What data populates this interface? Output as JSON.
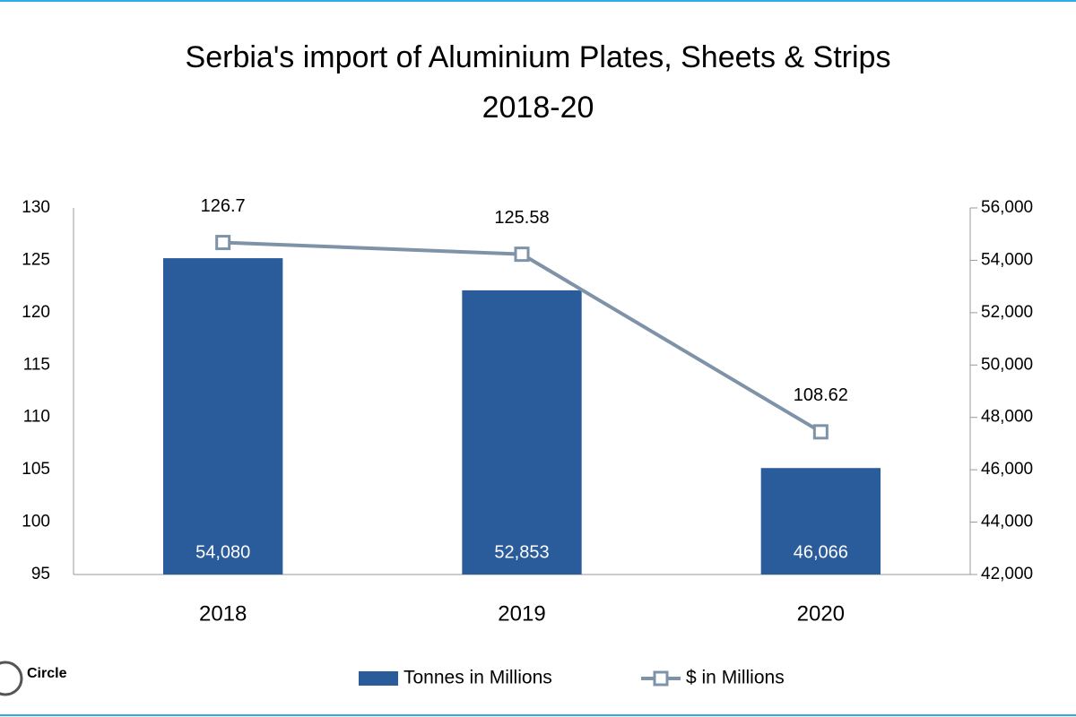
{
  "chart_data": {
    "type": "combo",
    "title": [
      "Serbia's import of Aluminium Plates, Sheets & Strips",
      "2018-20"
    ],
    "logo": "Circle",
    "categories": [
      "2018",
      "2019",
      "2020"
    ],
    "series": [
      {
        "name": "Tonnes in Millions",
        "type": "bar",
        "axis": "y2",
        "color": "#2a5b9b",
        "values": [
          54080,
          52853,
          46066
        ],
        "value_labels": [
          "54,080",
          "52,853",
          "46,066"
        ]
      },
      {
        "name": "$ in Millions",
        "type": "line",
        "axis": "y",
        "color": "#7f93a8",
        "values": [
          126.7,
          125.58,
          108.62
        ]
      }
    ],
    "ylim": [
      95,
      130
    ],
    "yticks": [
      95,
      100,
      105,
      110,
      115,
      120,
      125,
      130
    ],
    "y2lim": [
      42000,
      56000
    ],
    "y2ticks": [
      {
        "value": 42000,
        "label": "42,000"
      },
      {
        "value": 44000,
        "label": "44,000"
      },
      {
        "value": 46000,
        "label": "46,000"
      },
      {
        "value": 48000,
        "label": "48,000"
      },
      {
        "value": 50000,
        "label": "50,000"
      },
      {
        "value": 52000,
        "label": "52,000"
      },
      {
        "value": 54000,
        "label": "54,000"
      },
      {
        "value": 56000,
        "label": "56,000"
      }
    ],
    "grid": false,
    "legend": "bottom"
  }
}
